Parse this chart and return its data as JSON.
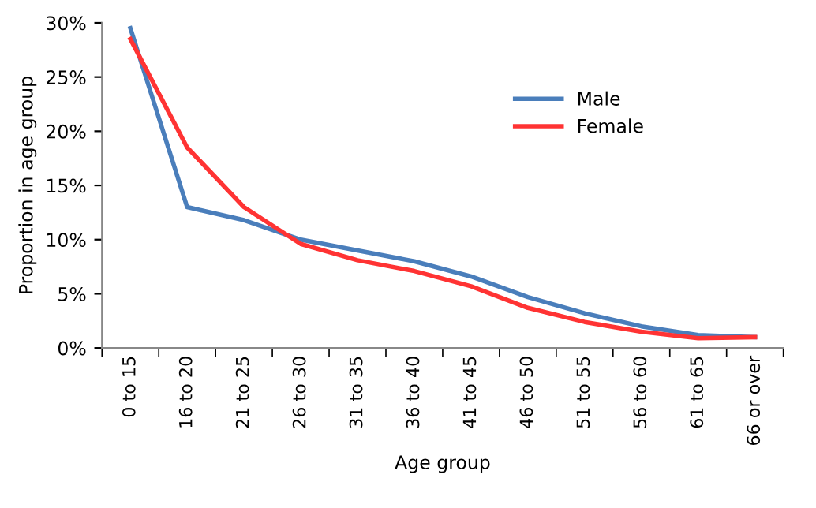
{
  "chart_data": {
    "type": "line",
    "xlabel": "Age group",
    "ylabel": "Proportion in age group",
    "categories": [
      "0 to 15",
      "16 to 20",
      "21 to 25",
      "26 to 30",
      "31 to 35",
      "36 to 40",
      "41 to 45",
      "46 to 50",
      "51 to 55",
      "56 to 60",
      "61 to 65",
      "66 or over"
    ],
    "series": [
      {
        "name": "Male",
        "color": "#4a7ebb",
        "values": [
          29.5,
          13,
          11.8,
          10,
          9,
          8,
          6.6,
          4.7,
          3.2,
          2.0,
          1.2,
          1.0
        ]
      },
      {
        "name": "Female",
        "color": "#ff3333",
        "values": [
          28.5,
          18.5,
          13,
          9.6,
          8.1,
          7.1,
          5.7,
          3.7,
          2.4,
          1.5,
          0.9,
          1.0
        ]
      }
    ],
    "ylim": [
      0,
      30
    ],
    "yticks": [
      {
        "value": 0,
        "label": "0%"
      },
      {
        "value": 5,
        "label": "5%"
      },
      {
        "value": 10,
        "label": "10%"
      },
      {
        "value": 15,
        "label": "15%"
      },
      {
        "value": 20,
        "label": "20%"
      },
      {
        "value": 25,
        "label": "25%"
      },
      {
        "value": 30,
        "label": "30%"
      }
    ],
    "grid": false,
    "legend": "right",
    "marker": "none",
    "line_style": "solid"
  }
}
